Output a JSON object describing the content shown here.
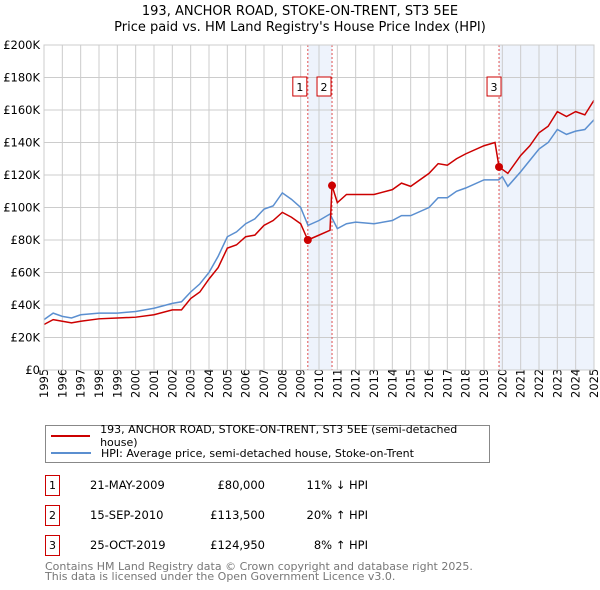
{
  "chart_data": {
    "type": "line",
    "title": "193, ANCHOR ROAD, STOKE-ON-TRENT, ST3 5EE",
    "subtitle": "Price paid vs. HM Land Registry's House Price Index (HPI)",
    "xlim": [
      1995,
      2025
    ],
    "ylim": [
      0,
      200000
    ],
    "yticks": [
      0,
      20000,
      40000,
      60000,
      80000,
      100000,
      120000,
      140000,
      160000,
      180000,
      200000
    ],
    "ytick_labels": [
      "£0",
      "£20K",
      "£40K",
      "£60K",
      "£80K",
      "£100K",
      "£120K",
      "£140K",
      "£160K",
      "£180K",
      "£200K"
    ],
    "xtick_labels": [
      "1995",
      "1996",
      "1997",
      "1998",
      "1999",
      "2000",
      "2001",
      "2002",
      "2003",
      "2004",
      "2005",
      "2006",
      "2007",
      "2008",
      "2009",
      "2010",
      "2011",
      "2012",
      "2013",
      "2014",
      "2015",
      "2016",
      "2017",
      "2018",
      "2019",
      "2020",
      "2021",
      "2022",
      "2023",
      "2024",
      "2025"
    ],
    "grid": true,
    "shaded_ranges": [
      [
        2009.39,
        2010.71
      ],
      [
        2019.82,
        2025
      ]
    ],
    "series": [
      {
        "name": "193, ANCHOR ROAD, STOKE-ON-TRENT, ST3 5EE (semi-detached house)",
        "color": "#cc0000",
        "x": [
          1995,
          1995.5,
          1996,
          1996.5,
          1997,
          1998,
          1999,
          2000,
          2001,
          2002,
          2002.5,
          2003,
          2003.5,
          2004,
          2004.5,
          2005,
          2005.5,
          2006,
          2006.5,
          2007,
          2007.5,
          2008,
          2008.5,
          2009,
          2009.39,
          2010,
          2010.6,
          2010.71,
          2011,
          2011.5,
          2012,
          2013,
          2014,
          2014.5,
          2015,
          2016,
          2016.5,
          2017,
          2017.5,
          2018,
          2019,
          2019.6,
          2019.82,
          2020.3,
          2021,
          2021.5,
          2022,
          2022.5,
          2023,
          2023.5,
          2024,
          2024.5,
          2025
        ],
        "y": [
          28000,
          31000,
          30000,
          29000,
          30000,
          31500,
          32000,
          32500,
          34000,
          37000,
          37000,
          44000,
          48000,
          56000,
          63000,
          75000,
          77000,
          82000,
          83000,
          89000,
          92000,
          97000,
          94000,
          90000,
          80000,
          83000,
          86000,
          113500,
          103000,
          108000,
          108000,
          108000,
          111000,
          115000,
          113000,
          121000,
          127000,
          126000,
          130000,
          133000,
          138000,
          140000,
          124950,
          121000,
          132000,
          138000,
          146000,
          150000,
          159000,
          156000,
          159000,
          157000,
          166000
        ]
      },
      {
        "name": "HPI: Average price, semi-detached house, Stoke-on-Trent",
        "color": "#5b8fd0",
        "x": [
          1995,
          1995.5,
          1996,
          1996.5,
          1997,
          1998,
          1999,
          2000,
          2001,
          2002,
          2002.5,
          2003,
          2003.5,
          2004,
          2004.5,
          2005,
          2005.5,
          2006,
          2006.5,
          2007,
          2007.5,
          2008,
          2008.5,
          2009,
          2009.4,
          2010,
          2010.6,
          2011,
          2011.5,
          2012,
          2013,
          2014,
          2014.5,
          2015,
          2016,
          2016.5,
          2017,
          2017.5,
          2018,
          2019,
          2019.8,
          2020,
          2020.3,
          2021,
          2021.5,
          2022,
          2022.5,
          2023,
          2023.5,
          2024,
          2024.5,
          2025
        ],
        "y": [
          31000,
          35000,
          33000,
          32000,
          34000,
          35000,
          35000,
          36000,
          38000,
          41000,
          42000,
          48000,
          53000,
          60000,
          70000,
          82000,
          85000,
          90000,
          93000,
          99000,
          101000,
          109000,
          105000,
          100000,
          89000,
          92000,
          96000,
          87000,
          90000,
          91000,
          90000,
          92000,
          95000,
          95000,
          100000,
          106000,
          106000,
          110000,
          112000,
          117000,
          117000,
          119000,
          113000,
          122000,
          129000,
          136000,
          140000,
          148000,
          145000,
          147000,
          148000,
          154000
        ]
      }
    ],
    "sales": [
      {
        "label": "1",
        "x": 2009.39,
        "y": 80000
      },
      {
        "label": "2",
        "x": 2010.71,
        "y": 113500
      },
      {
        "label": "3",
        "x": 2019.82,
        "y": 124950
      }
    ],
    "legend_position": "bottom"
  },
  "legend": {
    "property": "193, ANCHOR ROAD, STOKE-ON-TRENT, ST3 5EE (semi-detached house)",
    "hpi": "HPI: Average price, semi-detached house, Stoke-on-Trent"
  },
  "transactions": [
    {
      "num": "1",
      "date": "21-MAY-2009",
      "price": "£80,000",
      "hpi": "11% ↓ HPI"
    },
    {
      "num": "2",
      "date": "15-SEP-2010",
      "price": "£113,500",
      "hpi": "20% ↑ HPI"
    },
    {
      "num": "3",
      "date": "25-OCT-2019",
      "price": "£124,950",
      "hpi": "8% ↑ HPI"
    }
  ],
  "footer": {
    "line1": "Contains HM Land Registry data © Crown copyright and database right 2025.",
    "line2": "This data is licensed under the Open Government Licence v3.0."
  }
}
